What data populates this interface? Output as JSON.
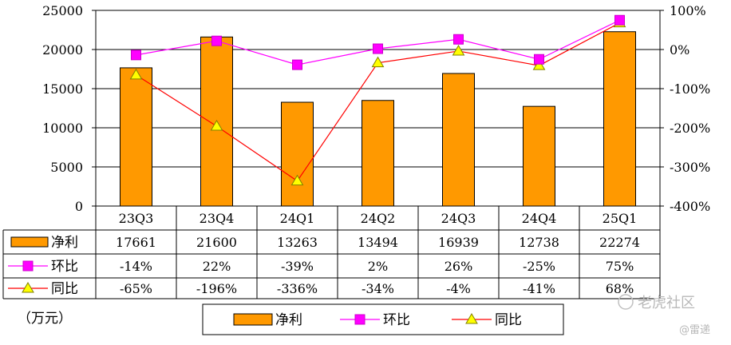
{
  "chart_data": {
    "type": "bar",
    "categories": [
      "23Q3",
      "23Q4",
      "24Q1",
      "24Q2",
      "24Q3",
      "24Q4",
      "25Q1"
    ],
    "ylim": [
      0,
      25000
    ],
    "yticks": [
      "0",
      "5000",
      "10000",
      "15000",
      "20000",
      "25000"
    ],
    "y2lim": [
      -400,
      100
    ],
    "y2ticks": [
      "-400%",
      "-300%",
      "-200%",
      "-100%",
      "0%",
      "100%"
    ],
    "unit_label": "（万元）",
    "series": [
      {
        "name": "净利",
        "kind": "bar",
        "values": [
          17661,
          21600,
          13263,
          13494,
          16939,
          12738,
          22274
        ],
        "labels": [
          "17661",
          "21600",
          "13263",
          "13494",
          "16939",
          "12738",
          "22274"
        ],
        "color": "#ff9900"
      },
      {
        "name": "环比",
        "kind": "line",
        "axis": "right",
        "values": [
          -14,
          22,
          -39,
          2,
          26,
          -25,
          75
        ],
        "labels": [
          "-14%",
          "22%",
          "-39%",
          "2%",
          "26%",
          "-25%",
          "75%"
        ],
        "color": "#ff00ff",
        "marker": "square"
      },
      {
        "name": "同比",
        "kind": "line",
        "axis": "right",
        "values": [
          -65,
          -196,
          -336,
          -34,
          -4,
          -41,
          68
        ],
        "labels": [
          "-65%",
          "-196%",
          "-336%",
          "-34%",
          "-4%",
          "-41%",
          "68%"
        ],
        "color": "#ff0000",
        "marker": "triangle",
        "marker_color": "#ffff00"
      }
    ]
  },
  "watermark": {
    "main": "老虎社区",
    "sub": "@雷递"
  }
}
